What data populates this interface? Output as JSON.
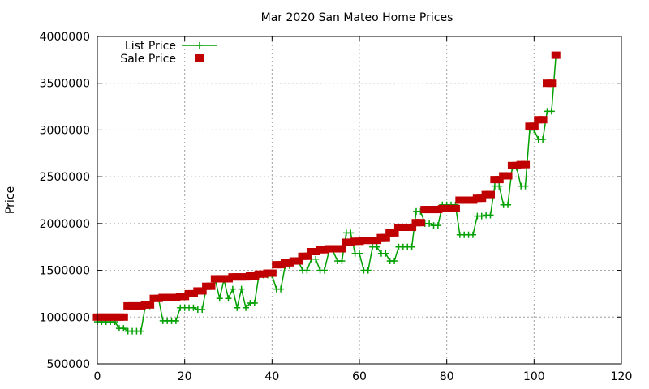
{
  "chart_data": {
    "type": "line",
    "title": "Mar 2020 San Mateo Home Prices",
    "xlabel": "",
    "ylabel": "Price",
    "xlim": [
      0,
      120
    ],
    "ylim": [
      500000,
      4000000
    ],
    "x_ticks": [
      0,
      20,
      40,
      60,
      80,
      100,
      120
    ],
    "y_ticks": [
      500000,
      1000000,
      1500000,
      2000000,
      2500000,
      3000000,
      3500000,
      4000000
    ],
    "grid": true,
    "legend_position": "top-left",
    "series": [
      {
        "name": "List Price",
        "style": "line-plus",
        "color": "#00a000",
        "x": [
          0,
          1,
          2,
          3,
          4,
          5,
          6,
          7,
          8,
          9,
          10,
          11,
          12,
          13,
          14,
          15,
          16,
          17,
          18,
          19,
          20,
          21,
          22,
          23,
          24,
          25,
          26,
          27,
          28,
          29,
          30,
          31,
          32,
          33,
          34,
          35,
          36,
          37,
          38,
          39,
          40,
          41,
          42,
          43,
          44,
          45,
          46,
          47,
          48,
          49,
          50,
          51,
          52,
          53,
          54,
          55,
          56,
          57,
          58,
          59,
          60,
          61,
          62,
          63,
          64,
          65,
          66,
          67,
          68,
          69,
          70,
          71,
          72,
          73,
          74,
          75,
          76,
          77,
          78,
          79,
          80,
          81,
          82,
          83,
          84,
          85,
          86,
          87,
          88,
          89,
          90,
          91,
          92,
          93,
          94,
          95,
          96,
          97,
          98,
          99,
          100,
          101,
          102,
          103,
          104,
          105
        ],
        "y": [
          950000,
          950000,
          950000,
          950000,
          950000,
          880000,
          880000,
          850000,
          850000,
          850000,
          850000,
          1120000,
          1120000,
          1200000,
          1200000,
          960000,
          960000,
          960000,
          960000,
          1100000,
          1100000,
          1100000,
          1100000,
          1080000,
          1080000,
          1330000,
          1330000,
          1400000,
          1200000,
          1400000,
          1200000,
          1300000,
          1100000,
          1300000,
          1100000,
          1150000,
          1150000,
          1450000,
          1450000,
          1450000,
          1450000,
          1300000,
          1300000,
          1550000,
          1550000,
          1600000,
          1600000,
          1500000,
          1500000,
          1620000,
          1620000,
          1500000,
          1500000,
          1700000,
          1700000,
          1600000,
          1600000,
          1900000,
          1900000,
          1680000,
          1680000,
          1500000,
          1500000,
          1750000,
          1750000,
          1680000,
          1680000,
          1600000,
          1600000,
          1750000,
          1750000,
          1750000,
          1750000,
          2130000,
          2130000,
          2000000,
          2000000,
          1980000,
          1980000,
          2200000,
          2200000,
          2200000,
          2200000,
          1880000,
          1880000,
          1880000,
          1880000,
          2080000,
          2080000,
          2090000,
          2090000,
          2400000,
          2400000,
          2200000,
          2200000,
          2600000,
          2600000,
          2400000,
          2400000,
          3000000,
          3000000,
          2900000,
          2900000,
          3200000,
          3200000,
          3800000
        ]
      },
      {
        "name": "Sale Price",
        "style": "squares",
        "color": "#c00000",
        "x": [
          0,
          1,
          2,
          3,
          4,
          5,
          6,
          7,
          8,
          9,
          10,
          11,
          12,
          13,
          14,
          15,
          16,
          17,
          18,
          19,
          20,
          21,
          22,
          23,
          24,
          25,
          26,
          27,
          28,
          29,
          30,
          31,
          32,
          33,
          34,
          35,
          36,
          37,
          38,
          39,
          40,
          41,
          42,
          43,
          44,
          45,
          46,
          47,
          48,
          49,
          50,
          51,
          52,
          53,
          54,
          55,
          56,
          57,
          58,
          59,
          60,
          61,
          62,
          63,
          64,
          65,
          66,
          67,
          68,
          69,
          70,
          71,
          72,
          73,
          74,
          75,
          76,
          77,
          78,
          79,
          80,
          81,
          82,
          83,
          84,
          85,
          86,
          87,
          88,
          89,
          90,
          91,
          92,
          93,
          94,
          95,
          96,
          97,
          98,
          99,
          100,
          101,
          102,
          103,
          104,
          105
        ],
        "y": [
          1000000,
          1000000,
          1000000,
          1000000,
          1000000,
          1000000,
          1000000,
          1120000,
          1120000,
          1120000,
          1120000,
          1130000,
          1130000,
          1200000,
          1200000,
          1210000,
          1210000,
          1210000,
          1210000,
          1220000,
          1220000,
          1250000,
          1250000,
          1280000,
          1280000,
          1330000,
          1330000,
          1410000,
          1410000,
          1410000,
          1410000,
          1430000,
          1430000,
          1430000,
          1430000,
          1440000,
          1440000,
          1460000,
          1460000,
          1470000,
          1470000,
          1560000,
          1560000,
          1580000,
          1580000,
          1600000,
          1600000,
          1650000,
          1650000,
          1700000,
          1700000,
          1720000,
          1720000,
          1730000,
          1730000,
          1730000,
          1730000,
          1800000,
          1800000,
          1810000,
          1810000,
          1820000,
          1820000,
          1820000,
          1820000,
          1850000,
          1850000,
          1900000,
          1900000,
          1960000,
          1960000,
          1960000,
          1960000,
          2010000,
          2010000,
          2150000,
          2150000,
          2150000,
          2150000,
          2160000,
          2160000,
          2160000,
          2160000,
          2250000,
          2250000,
          2250000,
          2250000,
          2270000,
          2270000,
          2310000,
          2310000,
          2470000,
          2470000,
          2510000,
          2510000,
          2620000,
          2620000,
          2630000,
          2630000,
          3040000,
          3040000,
          3110000,
          3110000,
          3500000,
          3500000,
          3800000
        ]
      }
    ]
  }
}
